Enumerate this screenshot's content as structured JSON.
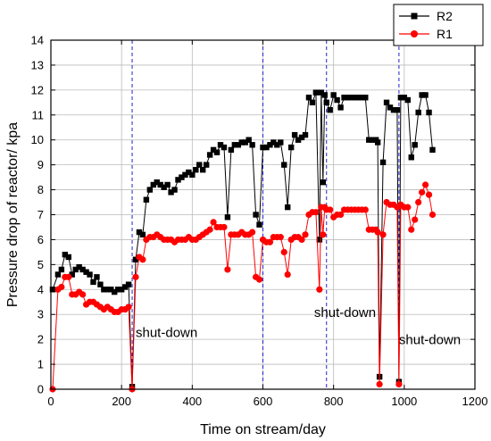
{
  "chart_data": {
    "type": "line",
    "xlabel": "Time on stream/day",
    "ylabel": "Pressure drop of reactor/ kpa",
    "xlim": [
      0,
      1200
    ],
    "ylim": [
      0,
      14
    ],
    "xticks": [
      0,
      200,
      400,
      600,
      800,
      1000,
      1200
    ],
    "yticks": [
      0,
      1,
      2,
      3,
      4,
      5,
      6,
      7,
      8,
      9,
      10,
      11,
      12,
      13,
      14
    ],
    "grid": true,
    "legend_position": "top-right",
    "vertical_markers": [
      230,
      600,
      780,
      985
    ],
    "annotations": [
      {
        "text": "shut-down",
        "x": 240,
        "y": 2.1
      },
      {
        "text": "shut-down",
        "x": 745,
        "y": 2.9
      },
      {
        "text": "shut-down",
        "x": 985,
        "y": 1.8
      }
    ],
    "series": [
      {
        "name": "R2",
        "color": "#000000",
        "marker": "square",
        "x": [
          5,
          20,
          30,
          40,
          50,
          60,
          70,
          80,
          90,
          100,
          110,
          120,
          130,
          140,
          150,
          160,
          170,
          180,
          190,
          200,
          210,
          220,
          230,
          240,
          250,
          260,
          270,
          280,
          290,
          300,
          310,
          320,
          330,
          340,
          350,
          360,
          370,
          380,
          390,
          400,
          410,
          420,
          430,
          440,
          450,
          460,
          470,
          480,
          490,
          500,
          510,
          520,
          530,
          540,
          550,
          560,
          570,
          580,
          590,
          600,
          610,
          620,
          630,
          640,
          650,
          660,
          670,
          680,
          690,
          700,
          710,
          720,
          730,
          740,
          750,
          760,
          765,
          770,
          775,
          780,
          790,
          800,
          810,
          820,
          830,
          840,
          850,
          860,
          870,
          880,
          890,
          900,
          910,
          920,
          925,
          930,
          940,
          950,
          960,
          970,
          980,
          985,
          990,
          1000,
          1010,
          1020,
          1030,
          1040,
          1050,
          1060,
          1070,
          1080
        ],
        "y": [
          4.0,
          4.6,
          4.8,
          5.4,
          5.3,
          4.6,
          4.8,
          4.9,
          4.8,
          4.7,
          4.6,
          4.3,
          4.5,
          4.2,
          4.0,
          4.0,
          4.0,
          3.9,
          4.0,
          4.0,
          4.1,
          4.2,
          0.1,
          5.2,
          6.3,
          6.2,
          7.6,
          8.0,
          8.2,
          8.3,
          8.2,
          8.1,
          8.2,
          7.9,
          8.0,
          8.4,
          8.5,
          8.6,
          8.7,
          8.6,
          8.8,
          9.0,
          8.8,
          9.0,
          9.4,
          9.6,
          9.5,
          9.8,
          9.7,
          6.9,
          9.6,
          9.8,
          9.8,
          9.9,
          9.9,
          10.0,
          9.8,
          7.0,
          6.6,
          9.7,
          9.7,
          9.8,
          9.9,
          9.8,
          9.9,
          9.0,
          7.3,
          9.7,
          10.2,
          10.0,
          10.1,
          10.2,
          11.7,
          11.5,
          11.9,
          6.0,
          11.9,
          8.3,
          11.8,
          11.5,
          11.2,
          11.8,
          11.6,
          11.3,
          11.7,
          11.7,
          11.7,
          11.7,
          11.7,
          11.7,
          11.7,
          10.0,
          10.0,
          10.0,
          9.9,
          0.5,
          9.1,
          11.5,
          11.3,
          11.2,
          11.2,
          0.3,
          11.7,
          11.7,
          11.6,
          9.3,
          9.8,
          11.1,
          11.8,
          11.8,
          11.1,
          9.6
        ]
      },
      {
        "name": "R1",
        "color": "#ff0000",
        "marker": "circle",
        "x": [
          5,
          20,
          30,
          40,
          50,
          60,
          70,
          80,
          90,
          100,
          110,
          120,
          130,
          140,
          150,
          160,
          170,
          180,
          190,
          200,
          210,
          220,
          230,
          240,
          250,
          260,
          270,
          280,
          290,
          300,
          310,
          320,
          330,
          340,
          350,
          360,
          370,
          380,
          390,
          400,
          410,
          420,
          430,
          440,
          450,
          460,
          470,
          480,
          490,
          500,
          510,
          520,
          530,
          540,
          550,
          560,
          570,
          580,
          590,
          600,
          610,
          620,
          630,
          640,
          650,
          660,
          670,
          680,
          690,
          700,
          710,
          720,
          730,
          740,
          750,
          760,
          765,
          770,
          775,
          780,
          790,
          800,
          810,
          820,
          830,
          840,
          850,
          860,
          870,
          880,
          890,
          900,
          910,
          920,
          925,
          930,
          940,
          950,
          960,
          970,
          980,
          985,
          990,
          1000,
          1010,
          1020,
          1030,
          1040,
          1050,
          1060,
          1070,
          1080
        ],
        "y": [
          0.0,
          4.0,
          4.1,
          4.5,
          4.5,
          3.8,
          3.8,
          3.9,
          3.8,
          3.4,
          3.5,
          3.5,
          3.4,
          3.3,
          3.2,
          3.3,
          3.2,
          3.1,
          3.1,
          3.2,
          3.2,
          3.3,
          0.0,
          4.5,
          5.3,
          5.2,
          6.0,
          6.1,
          6.1,
          6.2,
          6.1,
          6.0,
          6.0,
          6.0,
          5.9,
          6.0,
          6.0,
          6.0,
          6.1,
          6.0,
          6.0,
          6.1,
          6.2,
          6.3,
          6.4,
          6.7,
          6.5,
          6.5,
          6.5,
          4.8,
          6.2,
          6.2,
          6.2,
          6.3,
          6.2,
          6.2,
          6.3,
          4.5,
          4.4,
          6.0,
          5.9,
          5.9,
          6.1,
          6.1,
          6.1,
          5.5,
          4.6,
          6.0,
          6.1,
          6.1,
          6.0,
          6.2,
          7.0,
          7.1,
          7.1,
          4.0,
          7.3,
          6.2,
          7.3,
          7.2,
          7.2,
          6.9,
          7.0,
          7.0,
          7.2,
          7.2,
          7.2,
          7.2,
          7.2,
          7.2,
          7.2,
          6.4,
          6.4,
          6.4,
          6.3,
          0.2,
          6.2,
          7.5,
          7.4,
          7.4,
          7.3,
          0.2,
          7.4,
          7.3,
          7.3,
          6.4,
          6.8,
          7.5,
          7.9,
          8.2,
          7.8,
          7.0
        ]
      }
    ]
  }
}
